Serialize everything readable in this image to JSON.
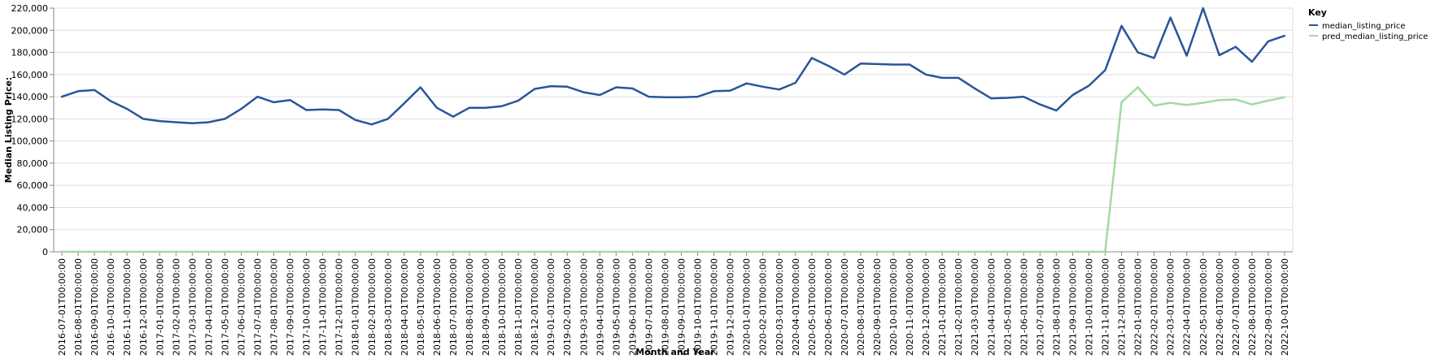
{
  "chart_data": {
    "type": "line",
    "xlabel": "Month and Year",
    "ylabel": "Median Listing Price:",
    "ylim": [
      0,
      220000
    ],
    "yticks": [
      0,
      20000,
      40000,
      60000,
      80000,
      100000,
      120000,
      140000,
      160000,
      180000,
      200000,
      220000
    ],
    "ytick_labels": [
      "0",
      "20,000",
      "40,000",
      "60,000",
      "80,000",
      "100,000",
      "120,000",
      "140,000",
      "160,000",
      "180,000",
      "200,000",
      "220,000"
    ],
    "grid": true,
    "legend": {
      "title": "Key",
      "placement": "top-right"
    },
    "colors": {
      "median_listing_price": "#2a5599",
      "pred_median_listing_price": "#a2dba0",
      "grid": "#dddddd",
      "axis": "#888888"
    },
    "x": [
      "2016-07-01T00:00:00",
      "2016-08-01T00:00:00",
      "2016-09-01T00:00:00",
      "2016-10-01T00:00:00",
      "2016-11-01T00:00:00",
      "2016-12-01T00:00:00",
      "2017-01-01T00:00:00",
      "2017-02-01T00:00:00",
      "2017-03-01T00:00:00",
      "2017-04-01T00:00:00",
      "2017-05-01T00:00:00",
      "2017-06-01T00:00:00",
      "2017-07-01T00:00:00",
      "2017-08-01T00:00:00",
      "2017-09-01T00:00:00",
      "2017-10-01T00:00:00",
      "2017-11-01T00:00:00",
      "2017-12-01T00:00:00",
      "2018-01-01T00:00:00",
      "2018-02-01T00:00:00",
      "2018-03-01T00:00:00",
      "2018-04-01T00:00:00",
      "2018-05-01T00:00:00",
      "2018-06-01T00:00:00",
      "2018-07-01T00:00:00",
      "2018-08-01T00:00:00",
      "2018-09-01T00:00:00",
      "2018-10-01T00:00:00",
      "2018-11-01T00:00:00",
      "2018-12-01T00:00:00",
      "2019-01-01T00:00:00",
      "2019-02-01T00:00:00",
      "2019-03-01T00:00:00",
      "2019-04-01T00:00:00",
      "2019-05-01T00:00:00",
      "2019-06-01T00:00:00",
      "2019-07-01T00:00:00",
      "2019-08-01T00:00:00",
      "2019-09-01T00:00:00",
      "2019-10-01T00:00:00",
      "2019-11-01T00:00:00",
      "2019-12-01T00:00:00",
      "2020-01-01T00:00:00",
      "2020-02-01T00:00:00",
      "2020-03-01T00:00:00",
      "2020-04-01T00:00:00",
      "2020-05-01T00:00:00",
      "2020-06-01T00:00:00",
      "2020-07-01T00:00:00",
      "2020-08-01T00:00:00",
      "2020-09-01T00:00:00",
      "2020-10-01T00:00:00",
      "2020-11-01T00:00:00",
      "2020-12-01T00:00:00",
      "2021-01-01T00:00:00",
      "2021-02-01T00:00:00",
      "2021-03-01T00:00:00",
      "2021-04-01T00:00:00",
      "2021-05-01T00:00:00",
      "2021-06-01T00:00:00",
      "2021-07-01T00:00:00",
      "2021-08-01T00:00:00",
      "2021-09-01T00:00:00",
      "2021-10-01T00:00:00",
      "2021-11-01T00:00:00",
      "2021-12-01T00:00:00",
      "2022-01-01T00:00:00",
      "2022-02-01T00:00:00",
      "2022-03-01T00:00:00",
      "2022-04-01T00:00:00",
      "2022-05-01T00:00:00",
      "2022-06-01T00:00:00",
      "2022-07-01T00:00:00",
      "2022-08-01T00:00:00",
      "2022-09-01T00:00:00",
      "2022-10-01T00:00:00"
    ],
    "series": [
      {
        "name": "median_listing_price",
        "values": [
          140000,
          145000,
          146000,
          136000,
          129000,
          120000,
          118000,
          117000,
          116000,
          117000,
          120000,
          129000,
          140000,
          135000,
          137000,
          128000,
          128500,
          128000,
          119000,
          115000,
          120000,
          134000,
          148500,
          130000,
          122000,
          130000,
          130000,
          131500,
          136500,
          147000,
          149500,
          149000,
          144000,
          141500,
          148500,
          147500,
          140000,
          139500,
          139500,
          140000,
          145000,
          145500,
          152000,
          149000,
          146500,
          152500,
          175000,
          168000,
          160000,
          170000,
          169500,
          169000,
          169000,
          160000,
          157000,
          157000,
          147500,
          138500,
          139000,
          140000,
          133000,
          127500,
          141500,
          150000,
          164000,
          204000,
          180000,
          175000,
          211500,
          177000,
          220000,
          177500,
          185000,
          171500,
          190000,
          195000
        ]
      },
      {
        "name": "pred_median_listing_price",
        "values": [
          0,
          0,
          0,
          0,
          0,
          0,
          0,
          0,
          0,
          0,
          0,
          0,
          0,
          0,
          0,
          0,
          0,
          0,
          0,
          0,
          0,
          0,
          0,
          0,
          0,
          0,
          0,
          0,
          0,
          0,
          0,
          0,
          0,
          0,
          0,
          0,
          0,
          0,
          0,
          0,
          0,
          0,
          0,
          0,
          0,
          0,
          0,
          0,
          0,
          0,
          0,
          0,
          0,
          0,
          0,
          0,
          0,
          0,
          0,
          0,
          0,
          0,
          0,
          0,
          0,
          135000,
          148500,
          132000,
          134500,
          132500,
          134500,
          137000,
          137500,
          133000,
          136500,
          139500
        ]
      }
    ]
  }
}
